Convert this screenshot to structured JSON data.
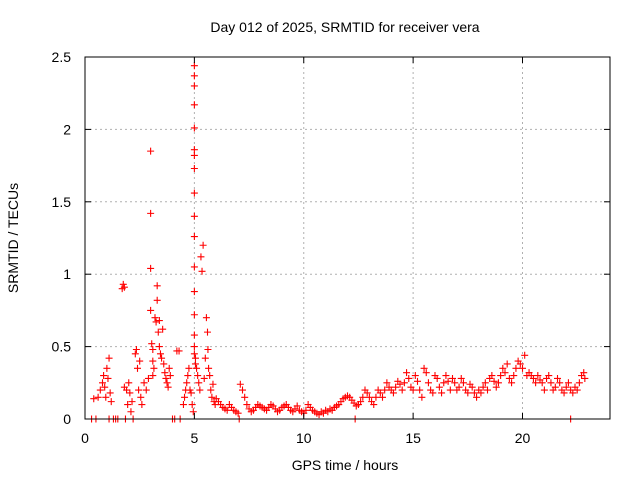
{
  "chart_data": {
    "type": "scatter",
    "title": "Day 012 of 2025, SRMTID for receiver vera",
    "xlabel": "GPS time / hours",
    "ylabel": "SRMTID / TECUs",
    "xlim": [
      0,
      24
    ],
    "ylim": [
      0,
      2.5
    ],
    "xticks": [
      0,
      5,
      10,
      15,
      20
    ],
    "xtick_labels": [
      "0",
      "5",
      "10",
      "15",
      "20"
    ],
    "yticks": [
      0,
      0.5,
      1,
      1.5,
      2,
      2.5
    ],
    "ytick_labels": [
      "0",
      "0.5",
      "1",
      "1.5",
      "2",
      "2.5"
    ],
    "grid": true,
    "marker": "+",
    "series": [
      {
        "name": "SRMTID",
        "color": "#ff0000",
        "points": [
          [
            0.3,
            0.0
          ],
          [
            0.4,
            0.14
          ],
          [
            0.5,
            0.0
          ],
          [
            0.6,
            0.15
          ],
          [
            0.7,
            0.2
          ],
          [
            0.8,
            0.25
          ],
          [
            0.85,
            0.3
          ],
          [
            0.9,
            0.22
          ],
          [
            0.95,
            0.15
          ],
          [
            1.0,
            0.35
          ],
          [
            1.05,
            0.28
          ],
          [
            1.1,
            0.0
          ],
          [
            1.1,
            0.42
          ],
          [
            1.15,
            0.18
          ],
          [
            1.2,
            0.12
          ],
          [
            1.3,
            0.0
          ],
          [
            1.4,
            0.0
          ],
          [
            1.5,
            0.0
          ],
          [
            1.7,
            0.9
          ],
          [
            1.75,
            0.93
          ],
          [
            1.8,
            0.91
          ],
          [
            1.8,
            0.22
          ],
          [
            1.85,
            0.0
          ],
          [
            1.9,
            0.2
          ],
          [
            1.95,
            0.1
          ],
          [
            2.0,
            0.25
          ],
          [
            2.05,
            0.18
          ],
          [
            2.1,
            0.05
          ],
          [
            2.15,
            0.12
          ],
          [
            2.2,
            0.0
          ],
          [
            2.3,
            0.45
          ],
          [
            2.35,
            0.48
          ],
          [
            2.4,
            0.35
          ],
          [
            2.45,
            0.2
          ],
          [
            2.5,
            0.4
          ],
          [
            2.55,
            0.15
          ],
          [
            2.6,
            0.1
          ],
          [
            2.7,
            0.25
          ],
          [
            2.8,
            0.2
          ],
          [
            2.9,
            0.28
          ],
          [
            3.0,
            1.85
          ],
          [
            3.0,
            1.42
          ],
          [
            3.0,
            1.04
          ],
          [
            3.0,
            0.75
          ],
          [
            3.05,
            0.52
          ],
          [
            3.1,
            0.48
          ],
          [
            3.1,
            0.4
          ],
          [
            3.1,
            0.3
          ],
          [
            3.15,
            0.35
          ],
          [
            3.2,
            0.7
          ],
          [
            3.25,
            0.67
          ],
          [
            3.3,
            0.92
          ],
          [
            3.3,
            0.82
          ],
          [
            3.35,
            0.6
          ],
          [
            3.4,
            0.68
          ],
          [
            3.4,
            0.5
          ],
          [
            3.45,
            0.45
          ],
          [
            3.5,
            0.42
          ],
          [
            3.55,
            0.62
          ],
          [
            3.6,
            0.38
          ],
          [
            3.65,
            0.32
          ],
          [
            3.7,
            0.28
          ],
          [
            3.75,
            0.25
          ],
          [
            3.8,
            0.22
          ],
          [
            3.85,
            0.35
          ],
          [
            3.9,
            0.3
          ],
          [
            4.0,
            0.0
          ],
          [
            4.1,
            0.0
          ],
          [
            4.2,
            0.47
          ],
          [
            4.3,
            0.47
          ],
          [
            4.35,
            0.0
          ],
          [
            4.5,
            0.1
          ],
          [
            4.55,
            0.15
          ],
          [
            4.6,
            0.2
          ],
          [
            4.65,
            0.25
          ],
          [
            4.7,
            0.3
          ],
          [
            4.75,
            0.35
          ],
          [
            4.8,
            0.2
          ],
          [
            4.85,
            0.18
          ],
          [
            4.9,
            0.1
          ],
          [
            4.95,
            0.05
          ],
          [
            5.0,
            2.44
          ],
          [
            5.0,
            2.37
          ],
          [
            5.0,
            2.3
          ],
          [
            5.0,
            2.17
          ],
          [
            5.0,
            2.01
          ],
          [
            5.0,
            1.86
          ],
          [
            5.0,
            1.82
          ],
          [
            5.0,
            1.73
          ],
          [
            5.0,
            1.56
          ],
          [
            5.0,
            1.4
          ],
          [
            5.0,
            1.26
          ],
          [
            5.0,
            1.05
          ],
          [
            5.0,
            0.88
          ],
          [
            5.0,
            0.72
          ],
          [
            5.0,
            0.58
          ],
          [
            5.0,
            0.5
          ],
          [
            5.0,
            0.45
          ],
          [
            5.05,
            0.38
          ],
          [
            5.05,
            0.42
          ],
          [
            5.1,
            0.35
          ],
          [
            5.15,
            0.3
          ],
          [
            5.2,
            0.25
          ],
          [
            5.25,
            0.2
          ],
          [
            5.3,
            1.12
          ],
          [
            5.35,
            1.02
          ],
          [
            5.4,
            1.2
          ],
          [
            5.45,
            0.28
          ],
          [
            5.5,
            0.42
          ],
          [
            5.55,
            0.7
          ],
          [
            5.6,
            0.6
          ],
          [
            5.62,
            0.48
          ],
          [
            5.65,
            0.35
          ],
          [
            5.7,
            0.3
          ],
          [
            5.75,
            0.2
          ],
          [
            5.8,
            0.15
          ],
          [
            5.85,
            0.24
          ],
          [
            5.9,
            0.12
          ],
          [
            5.95,
            0.1
          ],
          [
            6.0,
            0.14
          ],
          [
            6.1,
            0.12
          ],
          [
            6.2,
            0.1
          ],
          [
            6.3,
            0.08
          ],
          [
            6.4,
            0.07
          ],
          [
            6.5,
            0.06
          ],
          [
            6.6,
            0.1
          ],
          [
            6.7,
            0.08
          ],
          [
            6.8,
            0.06
          ],
          [
            6.9,
            0.05
          ],
          [
            7.0,
            0.04
          ],
          [
            7.05,
            0.0
          ],
          [
            7.1,
            0.24
          ],
          [
            7.2,
            0.2
          ],
          [
            7.3,
            0.15
          ],
          [
            7.4,
            0.1
          ],
          [
            7.5,
            0.07
          ],
          [
            7.6,
            0.05
          ],
          [
            7.7,
            0.06
          ],
          [
            7.8,
            0.08
          ],
          [
            7.9,
            0.1
          ],
          [
            8.0,
            0.09
          ],
          [
            8.1,
            0.08
          ],
          [
            8.2,
            0.07
          ],
          [
            8.3,
            0.06
          ],
          [
            8.4,
            0.08
          ],
          [
            8.5,
            0.1
          ],
          [
            8.6,
            0.09
          ],
          [
            8.7,
            0.07
          ],
          [
            8.8,
            0.05
          ],
          [
            8.9,
            0.06
          ],
          [
            9.0,
            0.08
          ],
          [
            9.1,
            0.09
          ],
          [
            9.2,
            0.1
          ],
          [
            9.3,
            0.08
          ],
          [
            9.4,
            0.06
          ],
          [
            9.5,
            0.05
          ],
          [
            9.6,
            0.07
          ],
          [
            9.7,
            0.09
          ],
          [
            9.8,
            0.06
          ],
          [
            9.9,
            0.05
          ],
          [
            10.0,
            0.04
          ],
          [
            10.1,
            0.06
          ],
          [
            10.2,
            0.1
          ],
          [
            10.3,
            0.08
          ],
          [
            10.4,
            0.06
          ],
          [
            10.5,
            0.05
          ],
          [
            10.6,
            0.04
          ],
          [
            10.7,
            0.03
          ],
          [
            10.8,
            0.05
          ],
          [
            10.9,
            0.04
          ],
          [
            11.0,
            0.06
          ],
          [
            11.1,
            0.05
          ],
          [
            11.2,
            0.07
          ],
          [
            11.3,
            0.06
          ],
          [
            11.4,
            0.08
          ],
          [
            11.5,
            0.09
          ],
          [
            11.6,
            0.1
          ],
          [
            11.7,
            0.12
          ],
          [
            11.8,
            0.14
          ],
          [
            11.9,
            0.15
          ],
          [
            12.0,
            0.16
          ],
          [
            12.1,
            0.15
          ],
          [
            12.2,
            0.13
          ],
          [
            12.3,
            0.11
          ],
          [
            12.35,
            0.0
          ],
          [
            12.4,
            0.09
          ],
          [
            12.5,
            0.1
          ],
          [
            12.6,
            0.12
          ],
          [
            12.7,
            0.15
          ],
          [
            12.8,
            0.2
          ],
          [
            12.9,
            0.18
          ],
          [
            13.0,
            0.15
          ],
          [
            13.1,
            0.12
          ],
          [
            13.2,
            0.1
          ],
          [
            13.3,
            0.15
          ],
          [
            13.4,
            0.2
          ],
          [
            13.5,
            0.18
          ],
          [
            13.6,
            0.15
          ],
          [
            13.7,
            0.2
          ],
          [
            13.8,
            0.25
          ],
          [
            13.9,
            0.22
          ],
          [
            14.0,
            0.2
          ],
          [
            14.1,
            0.18
          ],
          [
            14.2,
            0.22
          ],
          [
            14.3,
            0.26
          ],
          [
            14.4,
            0.24
          ],
          [
            14.5,
            0.2
          ],
          [
            14.6,
            0.25
          ],
          [
            14.7,
            0.32
          ],
          [
            14.8,
            0.28
          ],
          [
            14.9,
            0.22
          ],
          [
            15.0,
            0.2
          ],
          [
            15.1,
            0.3
          ],
          [
            15.2,
            0.26
          ],
          [
            15.3,
            0.2
          ],
          [
            15.4,
            0.15
          ],
          [
            15.5,
            0.35
          ],
          [
            15.6,
            0.32
          ],
          [
            15.7,
            0.25
          ],
          [
            15.8,
            0.2
          ],
          [
            15.9,
            0.18
          ],
          [
            16.0,
            0.3
          ],
          [
            16.1,
            0.28
          ],
          [
            16.2,
            0.22
          ],
          [
            16.3,
            0.18
          ],
          [
            16.4,
            0.25
          ],
          [
            16.5,
            0.3
          ],
          [
            16.6,
            0.26
          ],
          [
            16.7,
            0.2
          ],
          [
            16.8,
            0.28
          ],
          [
            16.9,
            0.25
          ],
          [
            17.0,
            0.2
          ],
          [
            17.1,
            0.22
          ],
          [
            17.2,
            0.28
          ],
          [
            17.3,
            0.25
          ],
          [
            17.4,
            0.2
          ],
          [
            17.5,
            0.18
          ],
          [
            17.6,
            0.24
          ],
          [
            17.7,
            0.22
          ],
          [
            17.8,
            0.18
          ],
          [
            17.9,
            0.15
          ],
          [
            18.0,
            0.2
          ],
          [
            18.1,
            0.18
          ],
          [
            18.2,
            0.22
          ],
          [
            18.3,
            0.25
          ],
          [
            18.4,
            0.2
          ],
          [
            18.5,
            0.28
          ],
          [
            18.6,
            0.3
          ],
          [
            18.7,
            0.26
          ],
          [
            18.8,
            0.22
          ],
          [
            18.9,
            0.25
          ],
          [
            19.0,
            0.3
          ],
          [
            19.1,
            0.35
          ],
          [
            19.2,
            0.32
          ],
          [
            19.3,
            0.38
          ],
          [
            19.4,
            0.28
          ],
          [
            19.5,
            0.25
          ],
          [
            19.6,
            0.3
          ],
          [
            19.7,
            0.35
          ],
          [
            19.8,
            0.4
          ],
          [
            19.9,
            0.38
          ],
          [
            20.0,
            0.35
          ],
          [
            20.1,
            0.44
          ],
          [
            20.2,
            0.3
          ],
          [
            20.3,
            0.32
          ],
          [
            20.4,
            0.3
          ],
          [
            20.5,
            0.28
          ],
          [
            20.6,
            0.25
          ],
          [
            20.7,
            0.3
          ],
          [
            20.8,
            0.27
          ],
          [
            20.9,
            0.25
          ],
          [
            21.0,
            0.2
          ],
          [
            21.1,
            0.28
          ],
          [
            21.2,
            0.3
          ],
          [
            21.3,
            0.25
          ],
          [
            21.4,
            0.2
          ],
          [
            21.5,
            0.22
          ],
          [
            21.6,
            0.28
          ],
          [
            21.7,
            0.25
          ],
          [
            21.8,
            0.2
          ],
          [
            21.9,
            0.18
          ],
          [
            22.0,
            0.22
          ],
          [
            22.1,
            0.25
          ],
          [
            22.2,
            0.0
          ],
          [
            22.2,
            0.2
          ],
          [
            22.3,
            0.18
          ],
          [
            22.4,
            0.22
          ],
          [
            22.5,
            0.2
          ],
          [
            22.6,
            0.25
          ],
          [
            22.7,
            0.3
          ],
          [
            22.8,
            0.32
          ],
          [
            22.85,
            0.28
          ]
        ]
      }
    ]
  }
}
